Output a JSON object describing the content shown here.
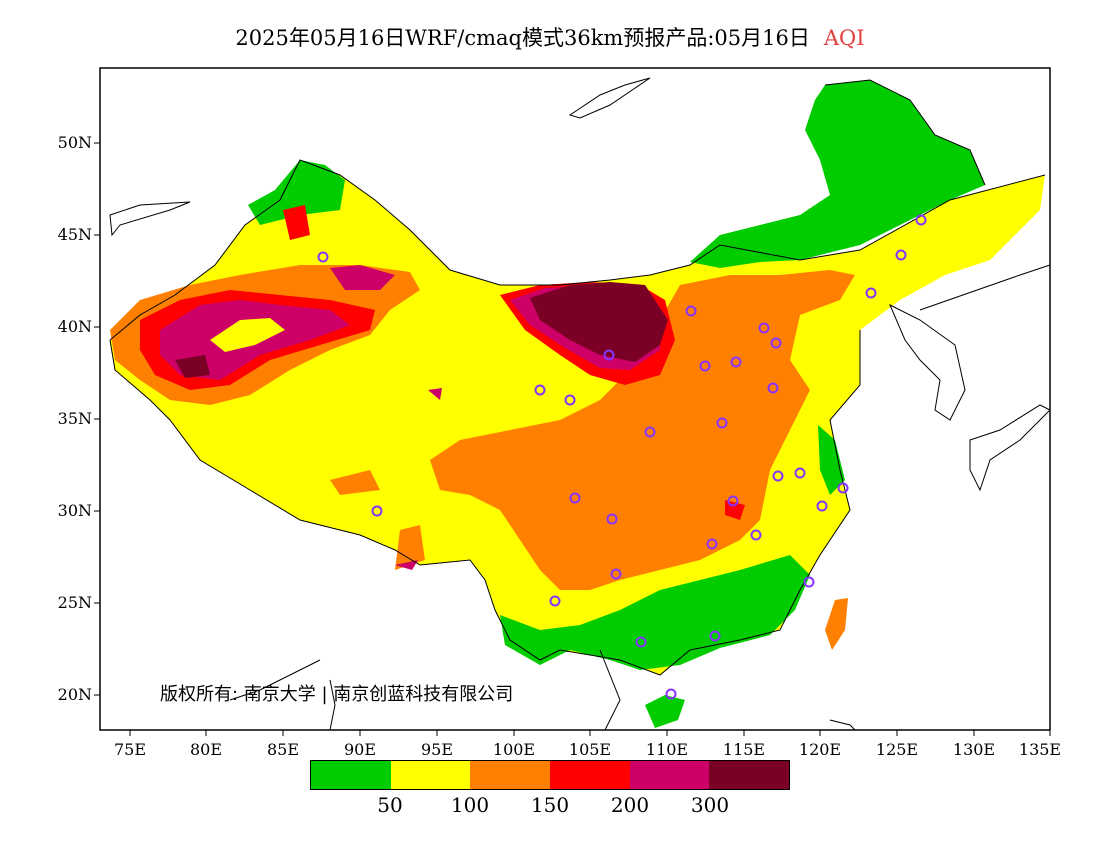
{
  "title": {
    "main": "2025年05月16日WRF/cmaq模式36km预报产品:05月16日",
    "variable": "AQI"
  },
  "map": {
    "lat_labels": [
      "50N",
      "45N",
      "40N",
      "35N",
      "30N",
      "25N",
      "20N"
    ],
    "lon_labels": [
      "75E",
      "80E",
      "85E",
      "90E",
      "95E",
      "100E",
      "105E",
      "110E",
      "115E",
      "120E",
      "125E",
      "130E",
      "135E"
    ]
  },
  "copyright": "版权所有: 南京大学 | 南京创蓝科技有限公司",
  "legend": {
    "colors": [
      "#00cc00",
      "#ffff00",
      "#ff8000",
      "#ff0000",
      "#cc0066",
      "#7a0026"
    ],
    "labels": [
      "50",
      "100",
      "150",
      "200",
      "300"
    ]
  },
  "colors": {
    "good": "#00cc00",
    "moderate": "#ffff00",
    "sensitive": "#ff8000",
    "unhealthy": "#ff0000",
    "very_unhealthy": "#cc0066",
    "hazardous": "#7a0026",
    "station_marker": "#8833ff",
    "title_highlight": "#e04040"
  }
}
